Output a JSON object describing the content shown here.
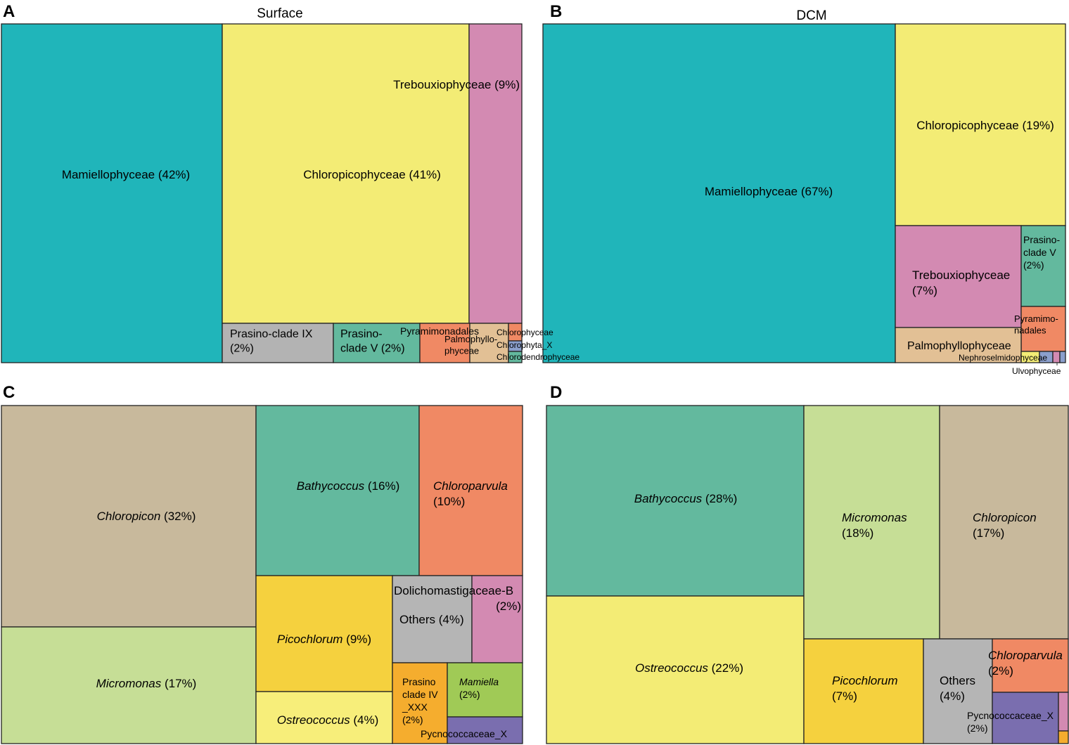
{
  "colors": {
    "teal": "#20b5ba",
    "yellow": "#f3ec75",
    "pink": "#d38ab2",
    "grey": "#b3b3b3",
    "green": "#63b99e",
    "orange": "#f08964",
    "tan": "#e2c095",
    "blue": "#8b9fcc",
    "beige": "#c8b99c",
    "lightgreen": "#c6de96",
    "gold": "#f5d13e",
    "paleyellow": "#f7ee7a",
    "amber": "#f5ad2e",
    "lime": "#a0ca56",
    "purple": "#7a6eaf",
    "grey2": "#b5b5b5"
  },
  "chart_data": [
    {
      "type": "treemap",
      "panel": "A",
      "title": "Surface",
      "items": [
        {
          "name": "Mamiellophyceae",
          "label": "Mamiellophyceae (42%)",
          "value": 42
        },
        {
          "name": "Chloropicophyceae",
          "label": "Chloropicophyceae (41%)",
          "value": 41
        },
        {
          "name": "Trebouxiophyceae",
          "label": "Trebouxiophyceae (9%)",
          "value": 9
        },
        {
          "name": "Prasino-clade IX",
          "label": "Prasino-clade IX (2%)",
          "value": 2
        },
        {
          "name": "Prasino-clade V",
          "label": "Prasino- clade V (2%)",
          "value": 2
        },
        {
          "name": "Pyramimonadales",
          "label": "Pyramimonadales",
          "value": null
        },
        {
          "name": "Palmophyllophyceae",
          "label": "Palmophyllo- phyceae",
          "value": null
        },
        {
          "name": "Chlorophyceae",
          "label": "Chlorophyceae",
          "value": null
        },
        {
          "name": "Chlorophyta_X",
          "label": "Chlorophyta_X",
          "value": null
        },
        {
          "name": "Chlorodendrophyceae",
          "label": "Chlorodendrophyceae",
          "value": null
        }
      ]
    },
    {
      "type": "treemap",
      "panel": "B",
      "title": "DCM",
      "items": [
        {
          "name": "Mamiellophyceae",
          "label": "Mamiellophyceae (67%)",
          "value": 67
        },
        {
          "name": "Chloropicophyceae",
          "label": "Chloropicophyceae (19%)",
          "value": 19
        },
        {
          "name": "Trebouxiophyceae",
          "label": "Trebouxiophyceae (7%)",
          "value": 7
        },
        {
          "name": "Prasino-clade V",
          "label": "Prasino- clade V (2%)",
          "value": 2
        },
        {
          "name": "Pyramimonadales",
          "label": "Pyramimo- nadales",
          "value": null
        },
        {
          "name": "Palmophyllophyceae",
          "label": "Palmophyllophyceae",
          "value": null
        },
        {
          "name": "Nephroselmidophyceae",
          "label": "Nephroselmidophyceae",
          "value": null
        },
        {
          "name": "Ulvophyceae",
          "label": "Ulvophyceae",
          "value": null
        }
      ]
    },
    {
      "type": "treemap",
      "panel": "C",
      "title": "",
      "items": [
        {
          "name": "Chloropicon",
          "label": "Chloropicon (32%)",
          "value": 32
        },
        {
          "name": "Micromonas",
          "label": "Micromonas (17%)",
          "value": 17
        },
        {
          "name": "Bathycoccus",
          "label": "Bathycoccus (16%)",
          "value": 16
        },
        {
          "name": "Chloroparvula",
          "label": "Chloroparvula (10%)",
          "value": 10
        },
        {
          "name": "Picochlorum",
          "label": "Picochlorum (9%)",
          "value": 9
        },
        {
          "name": "Ostreococcus",
          "label": "Ostreococcus (4%)",
          "value": 4
        },
        {
          "name": "Others",
          "label": "Others (4%)",
          "value": 4
        },
        {
          "name": "Dolichomastigaceae-B",
          "label": "Dolichomastigaceae-B (2%)",
          "value": 2
        },
        {
          "name": "Prasino clade IV _XXX",
          "label": "Prasino clade IV _XXX (2%)",
          "value": 2
        },
        {
          "name": "Mamiella",
          "label": "Mamiella (2%)",
          "value": 2
        },
        {
          "name": "Pycnococcaceae_X",
          "label": "Pycnococcaceae_X",
          "value": null
        }
      ]
    },
    {
      "type": "treemap",
      "panel": "D",
      "title": "",
      "items": [
        {
          "name": "Bathycoccus",
          "label": "Bathycoccus (28%)",
          "value": 28
        },
        {
          "name": "Ostreococcus",
          "label": "Ostreococcus (22%)",
          "value": 22
        },
        {
          "name": "Micromonas",
          "label": "Micromonas (18%)",
          "value": 18
        },
        {
          "name": "Chloropicon",
          "label": "Chloropicon (17%)",
          "value": 17
        },
        {
          "name": "Picochlorum",
          "label": "Picochlorum (7%)",
          "value": 7
        },
        {
          "name": "Others",
          "label": "Others (4%)",
          "value": 4
        },
        {
          "name": "Chloroparvula",
          "label": "Chloroparvula (2%)",
          "value": 2
        },
        {
          "name": "Pycnococcaceae_X",
          "label": "Pycnococcaceae_X (2%)",
          "value": 2
        }
      ]
    }
  ]
}
